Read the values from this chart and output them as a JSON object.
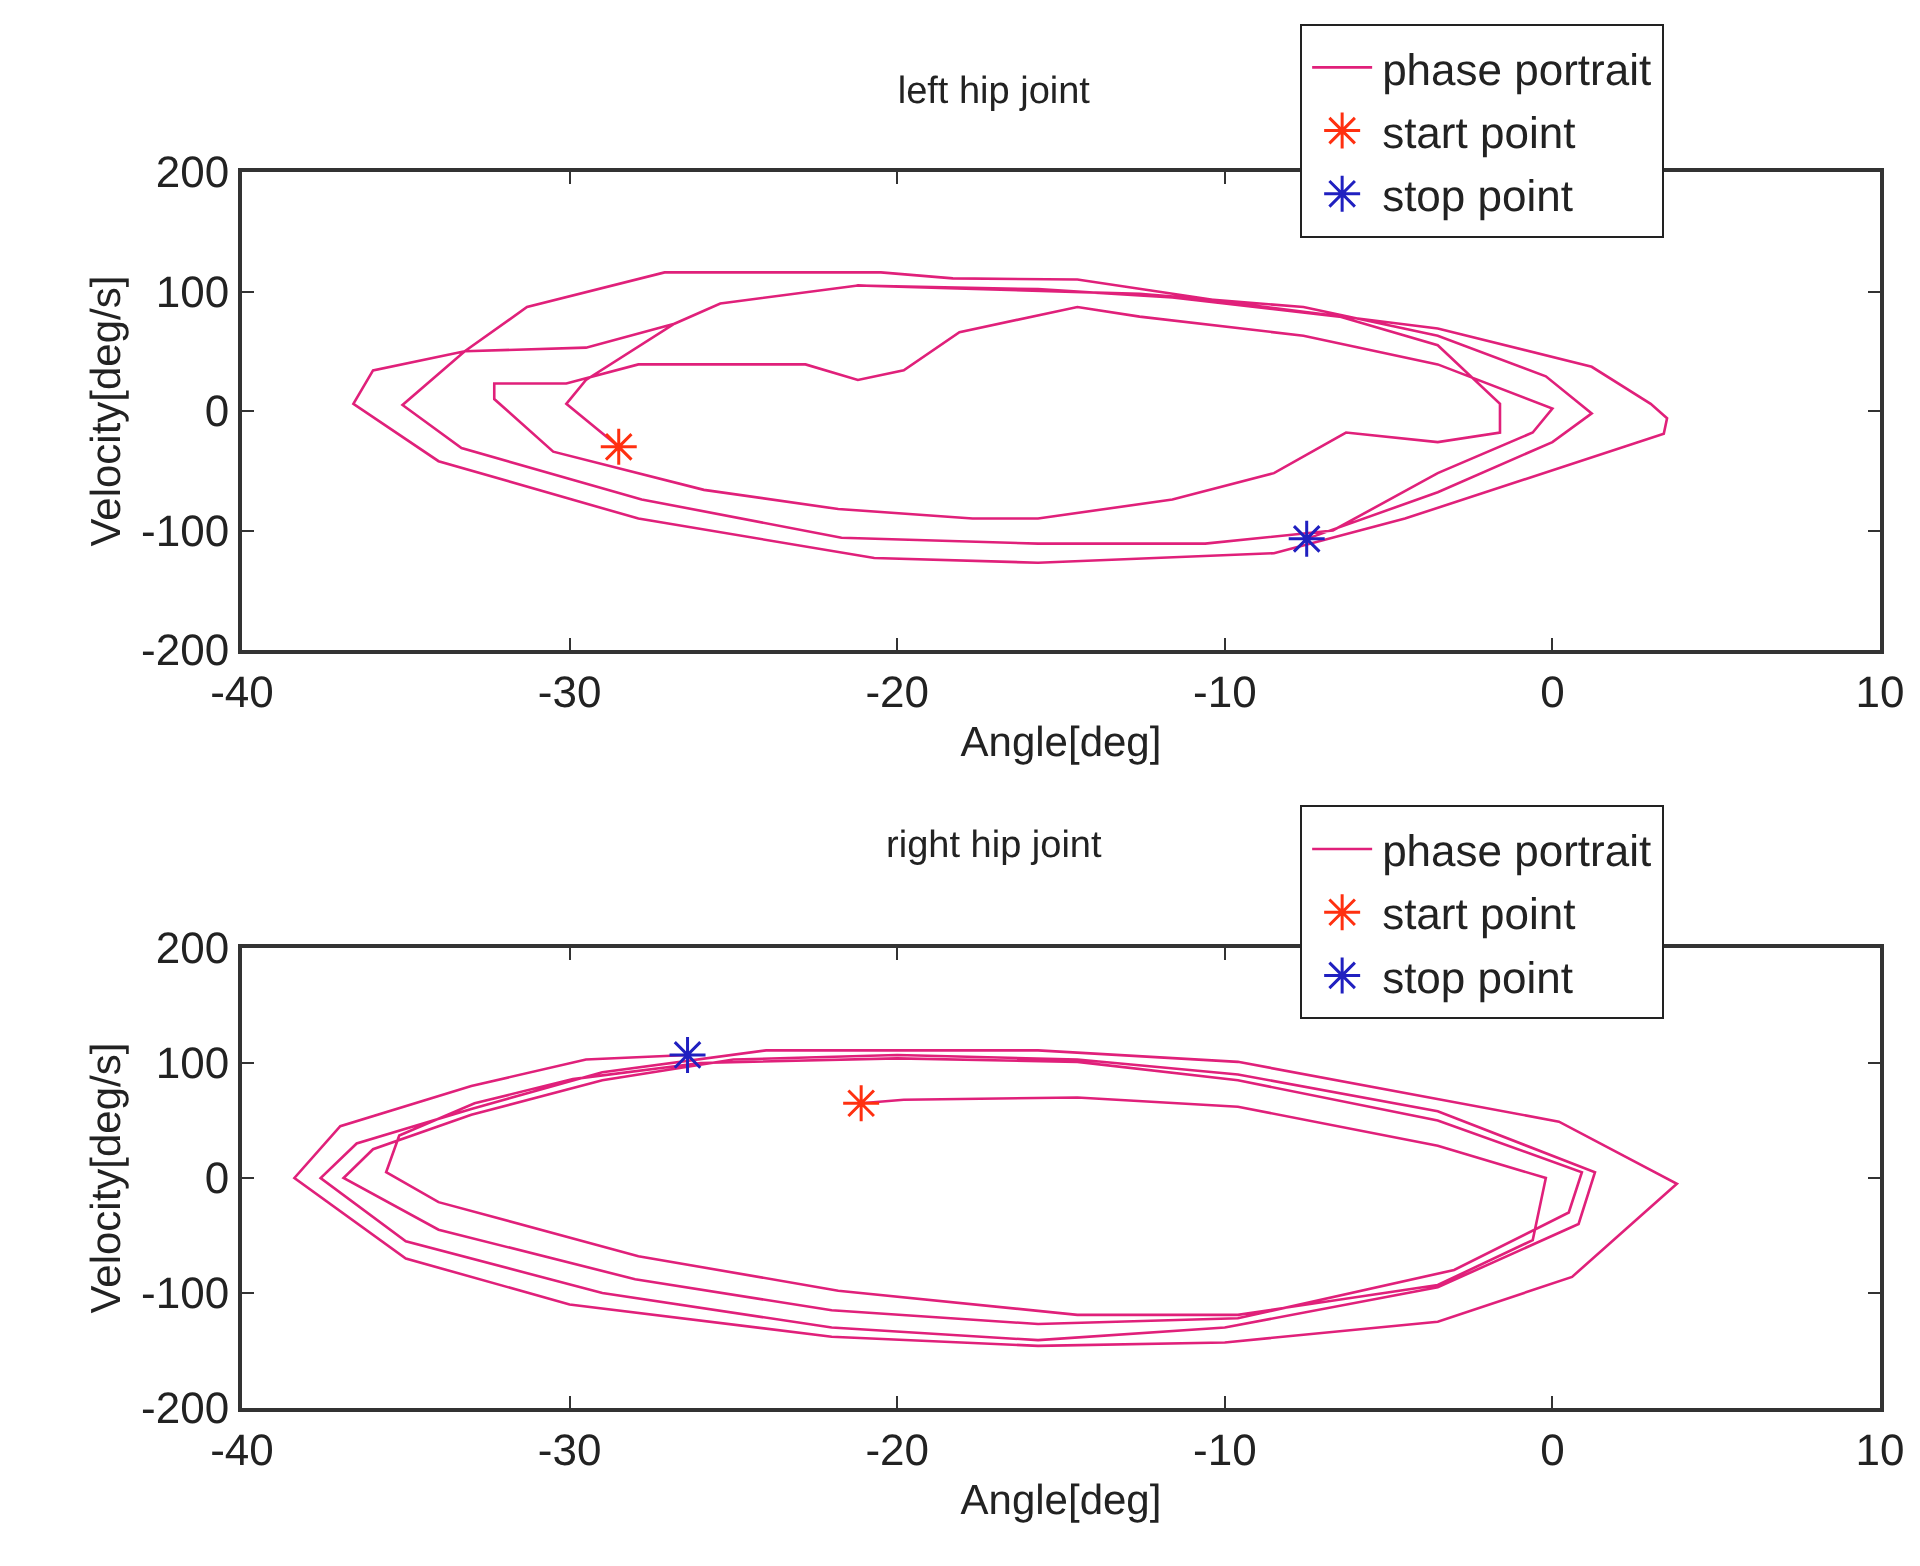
{
  "chart_data": [
    {
      "type": "line",
      "title": "left hip joint",
      "xlabel": "Angle[deg]",
      "ylabel": "Velocity[deg/s]",
      "xlim": [
        -40,
        10
      ],
      "xticks": [
        -40,
        -30,
        -20,
        -10,
        0,
        10
      ],
      "ylim": [
        -200,
        200
      ],
      "yticks": [
        -200,
        -100,
        0,
        100,
        200
      ],
      "grid": false,
      "legend": "top right",
      "series": [
        {
          "name": "phase portrait",
          "marker": "none",
          "color": "#e0207a",
          "x": [
            -28.5,
            -30.1,
            -29.5,
            -26.8,
            -25.4,
            -21.2,
            -15.7,
            -11.6,
            -6.5,
            -3.5,
            -1.6,
            -1.6,
            -3.5,
            -6.3,
            -8.5,
            -11.6,
            -15.7,
            -17.7,
            -21.8,
            -25.9,
            -30.5,
            -32.3,
            -32.3,
            -30.1,
            -27.9,
            -22.8,
            -21.2,
            -19.8,
            -18.1,
            -14.5,
            -12.6,
            -7.6,
            -3.5,
            0,
            -0.6,
            -3.5,
            -6.7,
            -10.6,
            -15.7,
            -21.7,
            -27.8,
            -33.3,
            -35.1,
            -33.2,
            -31.3,
            -27.1,
            -20.5,
            -18.3,
            -14.5,
            -9.6,
            -3.5,
            1.2,
            3,
            3.5,
            3.4,
            -4.5,
            -8.5,
            -15.7,
            -20.7,
            -27.9,
            -34,
            -36.6,
            -36,
            -33.2,
            -29.5,
            -26.8,
            -25.4,
            -21.2,
            -18.7,
            -12.6,
            -7.6,
            -3.5,
            -0.2,
            1.2,
            0,
            -3.5,
            -7.5
          ],
          "values": [
            -30,
            6,
            26,
            73,
            90,
            105,
            102,
            95,
            79,
            55,
            6,
            -18,
            -26,
            -18,
            -52,
            -74,
            -90,
            -90,
            -82,
            -66,
            -34,
            10,
            23,
            23,
            39,
            39,
            26,
            34,
            66,
            87,
            79,
            63,
            39,
            2,
            -18,
            -52,
            -100,
            -111,
            -111,
            -106,
            -74,
            -31,
            5,
            50,
            87,
            116,
            116,
            111,
            110,
            90,
            69,
            37,
            6,
            -6,
            -19,
            -90,
            -119,
            -127,
            -123,
            -90,
            -42,
            6,
            34,
            50,
            53,
            73,
            90,
            105,
            103,
            98,
            87,
            63,
            29,
            -2,
            -26,
            -68,
            -107
          ]
        },
        {
          "name": "start point",
          "type": "scatter",
          "marker": "cross",
          "color": "#ff3010",
          "x": [
            -28.5
          ],
          "values": [
            -30
          ]
        },
        {
          "name": "stop point",
          "type": "scatter",
          "marker": "cross",
          "color": "#2020c0",
          "x": [
            -7.5
          ],
          "values": [
            -107
          ]
        }
      ]
    },
    {
      "type": "line",
      "title": "right hip joint",
      "xlabel": "Angle[deg]",
      "ylabel": "Velocity[deg/s]",
      "xlim": [
        -40,
        10
      ],
      "xticks": [
        -40,
        -30,
        -20,
        -10,
        0,
        10
      ],
      "ylim": [
        -200,
        200
      ],
      "yticks": [
        -200,
        -100,
        0,
        100,
        200
      ],
      "grid": false,
      "legend": "top right",
      "series": [
        {
          "name": "phase portrait",
          "marker": "none",
          "color": "#e0207a",
          "x": [
            -21.1,
            -19.8,
            -14.5,
            -9.6,
            -3.5,
            -0.2,
            -0.6,
            -3.5,
            -9.6,
            -14.5,
            -21.8,
            -27.9,
            -34,
            -35.6,
            -35.2,
            -32.9,
            -29.9,
            -26,
            -20,
            -14.5,
            -9.6,
            -3.5,
            0.9,
            0.5,
            -3,
            -9.6,
            -15.7,
            -22,
            -28,
            -34,
            -36.9,
            -36,
            -33,
            -29,
            -25,
            -20,
            -14.5,
            -9.6,
            -3.5,
            1.3,
            0.8,
            -3.5,
            -10,
            -15.7,
            -22,
            -29,
            -35,
            -37.6,
            -36.5,
            -33,
            -29,
            -24,
            -15.7,
            -9.6,
            0.2,
            3.8,
            0.6,
            -3.5,
            -10,
            -15.7,
            -22,
            -30,
            -35,
            -38.4,
            -37,
            -33,
            -29.5,
            -26.4
          ],
          "values": [
            65,
            68,
            70,
            62,
            28,
            0,
            -54,
            -93,
            -119,
            -119,
            -98,
            -68,
            -21,
            5,
            37,
            65,
            86,
            100,
            104,
            101,
            85,
            50,
            5,
            -30,
            -80,
            -122,
            -127,
            -115,
            -88,
            -45,
            0,
            25,
            55,
            85,
            103,
            107,
            103,
            90,
            58,
            5,
            -40,
            -95,
            -130,
            -141,
            -130,
            -100,
            -55,
            0,
            30,
            60,
            92,
            111,
            111,
            101,
            49,
            -5,
            -86,
            -125,
            -143,
            -146,
            -138,
            -110,
            -70,
            0,
            45,
            80,
            103,
            107
          ]
        },
        {
          "name": "start point",
          "type": "scatter",
          "marker": "cross",
          "color": "#ff3010",
          "x": [
            -21.1
          ],
          "values": [
            65
          ]
        },
        {
          "name": "stop point",
          "type": "scatter",
          "marker": "cross",
          "color": "#2020c0",
          "x": [
            -26.4
          ],
          "values": [
            107
          ]
        }
      ]
    }
  ]
}
